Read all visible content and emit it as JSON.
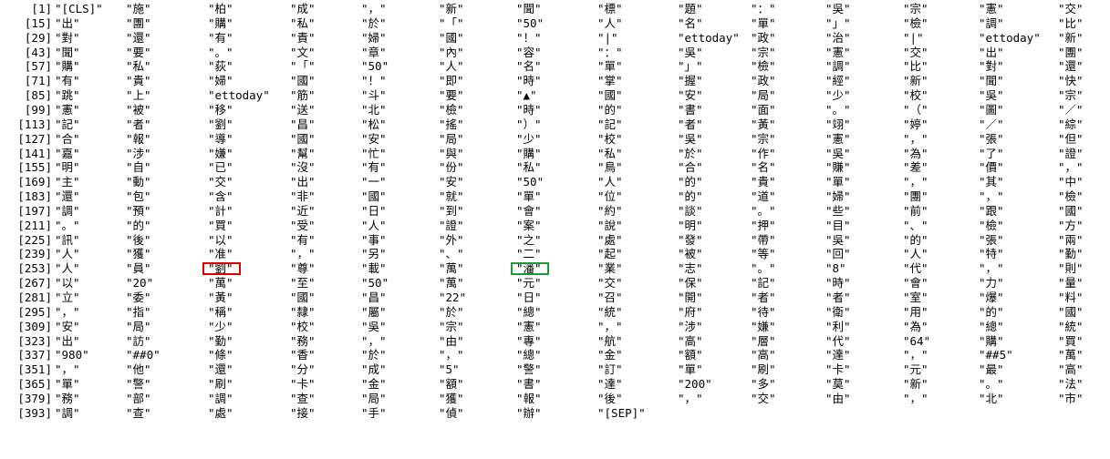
{
  "rows": [
    {
      "index": "[1]",
      "tokens": [
        "\"[CLS]\"",
        "\"施\"",
        "\"柏\"",
        "\"成\"",
        "\"，\"",
        "\"新\"",
        "\"聞\"",
        "\"標\"",
        "\"題\"",
        "\"：\"",
        "\"吳\"",
        "\"宗\"",
        "\"憲\"",
        "\"交\""
      ]
    },
    {
      "index": "[15]",
      "tokens": [
        "\"出\"",
        "\"團\"",
        "\"購\"",
        "\"私\"",
        "\"於\"",
        "\"「\"",
        "\"50\"",
        "\"人\"",
        "\"名\"",
        "\"單\"",
        "\"」\"",
        "\"檢\"",
        "\"調\"",
        "\"比\""
      ]
    },
    {
      "index": "[29]",
      "tokens": [
        "\"對\"",
        "\"還\"",
        "\"有\"",
        "\"責\"",
        "\"婦\"",
        "\"國\"",
        "\"！\"",
        "\"|\"",
        "\"ettoday\"",
        "\"政\"",
        "\"治\"",
        "\"|\"",
        "\"ettoday\"",
        "\"新\""
      ]
    },
    {
      "index": "[43]",
      "tokens": [
        "\"聞\"",
        "\"要\"",
        "\"。\"",
        "\"文\"",
        "\"章\"",
        "\"內\"",
        "\"容\"",
        "\"：\"",
        "\"吳\"",
        "\"宗\"",
        "\"憲\"",
        "\"交\"",
        "\"出\"",
        "\"團\""
      ]
    },
    {
      "index": "[57]",
      "tokens": [
        "\"購\"",
        "\"私\"",
        "\"荻\"",
        "\"「\"",
        "\"50\"",
        "\"人\"",
        "\"名\"",
        "\"單\"",
        "\"」\"",
        "\"檢\"",
        "\"調\"",
        "\"比\"",
        "\"對\"",
        "\"還\""
      ]
    },
    {
      "index": "[71]",
      "tokens": [
        "\"有\"",
        "\"貴\"",
        "\"婦\"",
        "\"國\"",
        "\"！\"",
        "\"即\"",
        "\"時\"",
        "\"掌\"",
        "\"握\"",
        "\"政\"",
        "\"經\"",
        "\"新\"",
        "\"聞\"",
        "\"快\""
      ]
    },
    {
      "index": "[85]",
      "tokens": [
        "\"跳\"",
        "\"上\"",
        "\"ettoday\"",
        "\"筋\"",
        "\"斗\"",
        "\"要\"",
        "\"▲\"",
        "\"國\"",
        "\"安\"",
        "\"局\"",
        "\"少\"",
        "\"校\"",
        "\"吳\"",
        "\"宗\""
      ]
    },
    {
      "index": "[99]",
      "tokens": [
        "\"憲\"",
        "\"被\"",
        "\"移\"",
        "\"送\"",
        "\"北\"",
        "\"檢\"",
        "\"時\"",
        "\"的\"",
        "\"書\"",
        "\"面\"",
        "\"。\"",
        "\"（\"",
        "\"圖\"",
        "\"／\""
      ]
    },
    {
      "index": "[113]",
      "tokens": [
        "\"記\"",
        "\"者\"",
        "\"劉\"",
        "\"昌\"",
        "\"松\"",
        "\"搖\"",
        "\"）\"",
        "\"記\"",
        "\"者\"",
        "\"黃\"",
        "\"翊\"",
        "\"婷\"",
        "\"／\"",
        "\"綜\""
      ]
    },
    {
      "index": "[127]",
      "tokens": [
        "\"合\"",
        "\"報\"",
        "\"導\"",
        "\"國\"",
        "\"安\"",
        "\"局\"",
        "\"少\"",
        "\"校\"",
        "\"吳\"",
        "\"宗\"",
        "\"憲\"",
        "\"，\"",
        "\"張\"",
        "\"但\""
      ]
    },
    {
      "index": "[141]",
      "tokens": [
        "\"嘉\"",
        "\"涉\"",
        "\"嫌\"",
        "\"幫\"",
        "\"忙\"",
        "\"與\"",
        "\"購\"",
        "\"私\"",
        "\"於\"",
        "\"作\"",
        "\"吳\"",
        "\"為\"",
        "\"了\"",
        "\"證\""
      ]
    },
    {
      "index": "[155]",
      "tokens": [
        "\"明\"",
        "\"自\"",
        "\"已\"",
        "\"沒\"",
        "\"有\"",
        "\"份\"",
        "\"私\"",
        "\"鳥\"",
        "\"合\"",
        "\"名\"",
        "\"賺\"",
        "\"差\"",
        "\"價\"",
        "\"，\""
      ]
    },
    {
      "index": "[169]",
      "tokens": [
        "\"主\"",
        "\"動\"",
        "\"交\"",
        "\"出\"",
        "\"一\"",
        "\"安\"",
        "\"50\"",
        "\"人\"",
        "\"的\"",
        "\"貴\"",
        "\"單\"",
        "\"，\"",
        "\"其\"",
        "\"中\""
      ]
    },
    {
      "index": "[183]",
      "tokens": [
        "\"還\"",
        "\"包\"",
        "\"含\"",
        "\"非\"",
        "\"國\"",
        "\"就\"",
        "\"單\"",
        "\"位\"",
        "\"的\"",
        "\"道\"",
        "\"婦\"",
        "\"團\"",
        "\"，\"",
        "\"檢\""
      ]
    },
    {
      "index": "[197]",
      "tokens": [
        "\"調\"",
        "\"預\"",
        "\"計\"",
        "\"近\"",
        "\"日\"",
        "\"到\"",
        "\"會\"",
        "\"約\"",
        "\"談\"",
        "\"。\"",
        "\"些\"",
        "\"前\"",
        "\"跟\"",
        "\"國\""
      ]
    },
    {
      "index": "[211]",
      "tokens": [
        "\"。\"",
        "\"的\"",
        "\"買\"",
        "\"受\"",
        "\"人\"",
        "\"證\"",
        "\"案\"",
        "\"說\"",
        "\"明\"",
        "\"押\"",
        "\"目\"",
        "\"、\"",
        "\"檢\"",
        "\"方\""
      ]
    },
    {
      "index": "[225]",
      "tokens": [
        "\"訊\"",
        "\"後\"",
        "\"以\"",
        "\"有\"",
        "\"事\"",
        "\"外\"",
        "\"之\"",
        "\"處\"",
        "\"發\"",
        "\"帶\"",
        "\"吳\"",
        "\"的\"",
        "\"張\"",
        "\"兩\""
      ]
    },
    {
      "index": "[239]",
      "tokens": [
        "\"人\"",
        "\"獲\"",
        "\"准\"",
        "\"，\"",
        "\"另\"",
        "\"、\"",
        "\"二\"",
        "\"起\"",
        "\"被\"",
        "\"等\"",
        "\"回\"",
        "\"人\"",
        "\"特\"",
        "\"勤\""
      ]
    },
    {
      "index": "[253]",
      "tokens": [
        "\"人\"",
        "\"員\"",
        "\"劉\"",
        "\"尊\"",
        "\"載\"",
        "\"萬\"",
        "\"潘\"",
        "\"業\"",
        "\"志\"",
        "\"。\"",
        "\"8\"",
        "\"代\"",
        "\"，\"",
        "\"則\""
      ]
    },
    {
      "index": "[267]",
      "tokens": [
        "\"以\"",
        "\"20\"",
        "\"萬\"",
        "\"至\"",
        "\"50\"",
        "\"萬\"",
        "\"元\"",
        "\"交\"",
        "\"保\"",
        "\"記\"",
        "\"時\"",
        "\"會\"",
        "\"力\"",
        "\"量\""
      ]
    },
    {
      "index": "[281]",
      "tokens": [
        "\"立\"",
        "\"委\"",
        "\"黃\"",
        "\"國\"",
        "\"昌\"",
        "\"22\"",
        "\"日\"",
        "\"召\"",
        "\"開\"",
        "\"者\"",
        "\"者\"",
        "\"室\"",
        "\"爆\"",
        "\"料\""
      ]
    },
    {
      "index": "[295]",
      "tokens": [
        "\"，\"",
        "\"指\"",
        "\"稱\"",
        "\"隸\"",
        "\"屬\"",
        "\"於\"",
        "\"總\"",
        "\"統\"",
        "\"府\"",
        "\"待\"",
        "\"衛\"",
        "\"用\"",
        "\"的\"",
        "\"國\""
      ]
    },
    {
      "index": "[309]",
      "tokens": [
        "\"安\"",
        "\"局\"",
        "\"少\"",
        "\"校\"",
        "\"吳\"",
        "\"宗\"",
        "\"憲\"",
        "\"，\"",
        "\"涉\"",
        "\"嫌\"",
        "\"利\"",
        "\"為\"",
        "\"總\"",
        "\"統\""
      ]
    },
    {
      "index": "[323]",
      "tokens": [
        "\"出\"",
        "\"訪\"",
        "\"勤\"",
        "\"務\"",
        "\"，\"",
        "\"由\"",
        "\"專\"",
        "\"航\"",
        "\"高\"",
        "\"層\"",
        "\"代\"",
        "\"64\"",
        "\"購\"",
        "\"買\""
      ]
    },
    {
      "index": "[337]",
      "tokens": [
        "\"980\"",
        "\"##0\"",
        "\"條\"",
        "\"香\"",
        "\"於\"",
        "\"，\"",
        "\"總\"",
        "\"金\"",
        "\"額\"",
        "\"高\"",
        "\"達\"",
        "\"，\"",
        "\"##5\"",
        "\"萬\""
      ]
    },
    {
      "index": "[351]",
      "tokens": [
        "\"，\"",
        "\"他\"",
        "\"還\"",
        "\"分\"",
        "\"成\"",
        "\"5\"",
        "\"警\"",
        "\"訂\"",
        "\"單\"",
        "\"刷\"",
        "\"卡\"",
        "\"元\"",
        "\"最\"",
        "\"高\""
      ]
    },
    {
      "index": "[365]",
      "tokens": [
        "\"單\"",
        "\"警\"",
        "\"刷\"",
        "\"卡\"",
        "\"金\"",
        "\"額\"",
        "\"書\"",
        "\"達\"",
        "\"200\"",
        "\"多\"",
        "\"莫\"",
        "\"新\"",
        "\"。\"",
        "\"法\""
      ]
    },
    {
      "index": "[379]",
      "tokens": [
        "\"務\"",
        "\"部\"",
        "\"調\"",
        "\"查\"",
        "\"局\"",
        "\"獲\"",
        "\"報\"",
        "\"後\"",
        "\"，\"",
        "\"交\"",
        "\"由\"",
        "\"，\"",
        "\"北\"",
        "\"市\""
      ]
    },
    {
      "index": "[393]",
      "tokens": [
        "\"調\"",
        "\"查\"",
        "\"處\"",
        "\"接\"",
        "\"手\"",
        "\"偵\"",
        "\"辦\"",
        "\"[SEP]\""
      ]
    }
  ],
  "highlights": [
    {
      "row": 18,
      "col": 2,
      "color": "#e00000"
    },
    {
      "row": 18,
      "col": 6,
      "color": "#1a9a3c"
    }
  ]
}
